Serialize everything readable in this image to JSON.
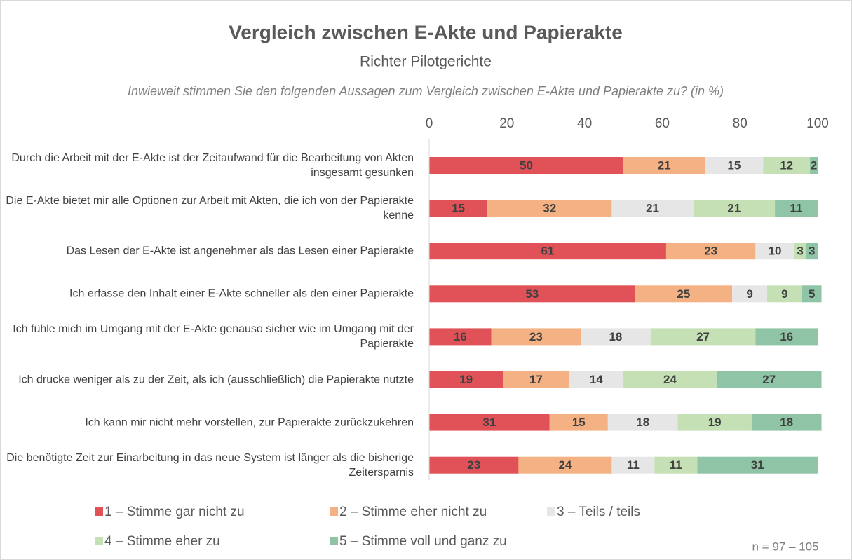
{
  "chart_data": {
    "type": "stacked_barh",
    "title": "Vergleich zwischen E-Akte und Papierakte",
    "subtitle": "Richter Pilotgerichte",
    "question": "Inwieweit stimmen Sie den folgenden Aussagen zum Vergleich zwischen E-Akte und Papierakte zu? (in %)",
    "annotation": "n = 97 – 105",
    "categories": [
      "Durch die Arbeit mit der E-Akte ist der Zeitaufwand für die Bearbeitung von Akten insgesamt gesunken",
      "Die E-Akte bietet mir alle Optionen zur Arbeit mit Akten, die ich von der Papierakte kenne",
      "Das Lesen der E-Akte ist angenehmer als das Lesen einer Papierakte",
      "Ich erfasse den Inhalt einer E-Akte schneller als den einer Papierakte",
      "Ich fühle mich im Umgang mit der E-Akte genauso sicher wie im Umgang mit der Papierakte",
      "Ich drucke weniger als zu der Zeit, als ich (ausschließlich) die Papierakte nutzte",
      "Ich kann mir nicht mehr vorstellen, zur Papierakte zurückzukehren",
      "Die benötigte Zeit zur Einarbeitung in das neue System ist länger als die bisherige Zeitersparnis"
    ],
    "series": [
      {
        "name": "1 – Stimme gar nicht zu",
        "color": "#e05257",
        "values": [
          50,
          15,
          61,
          53,
          16,
          19,
          31,
          23
        ]
      },
      {
        "name": "2 – Stimme eher nicht zu",
        "color": "#f4b183",
        "values": [
          21,
          32,
          23,
          25,
          23,
          17,
          15,
          24
        ]
      },
      {
        "name": "3 – Teils / teils",
        "color": "#e7e6e6",
        "values": [
          15,
          21,
          10,
          9,
          18,
          14,
          18,
          11
        ]
      },
      {
        "name": "4 – Stimme eher zu",
        "color": "#c5e0b4",
        "values": [
          12,
          21,
          3,
          9,
          27,
          24,
          19,
          11
        ]
      },
      {
        "name": "5 – Stimme voll und ganz zu",
        "color": "#8fc5a6",
        "values": [
          2,
          11,
          3,
          5,
          16,
          27,
          18,
          31
        ]
      }
    ],
    "xlim": [
      0,
      100
    ],
    "xticks": [
      0,
      20,
      40,
      60,
      80,
      100
    ],
    "grid": false,
    "legend": "bottom"
  }
}
